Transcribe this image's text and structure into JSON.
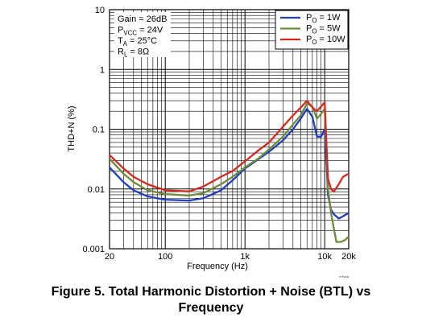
{
  "chart_data": {
    "type": "line",
    "xlabel": "Frequency (Hz)",
    "ylabel": "THD+N (%)",
    "x_scale": "log",
    "y_scale": "log",
    "xlim": [
      20,
      20000
    ],
    "ylim": [
      0.001,
      10
    ],
    "grid": true,
    "legend_position": "top-right",
    "x_ticks": [
      {
        "value": 20,
        "label": "20"
      },
      {
        "value": 100,
        "label": "100"
      },
      {
        "value": 1000,
        "label": "1k"
      },
      {
        "value": 10000,
        "label": "10k"
      },
      {
        "value": 20000,
        "label": "20k"
      }
    ],
    "y_ticks": [
      {
        "value": 0.001,
        "label": "0.001"
      },
      {
        "value": 0.01,
        "label": "0.01"
      },
      {
        "value": 0.1,
        "label": "0.1"
      },
      {
        "value": 1,
        "label": "1"
      },
      {
        "value": 10,
        "label": "10"
      }
    ],
    "conditions": [
      "Gain = 26dB",
      "PVCC = 24V",
      "TA = 25°C",
      "RL = 8Ω"
    ],
    "series": [
      {
        "name": "PO = 1W",
        "color": "#1f3fbf",
        "points": [
          [
            20,
            0.023
          ],
          [
            30,
            0.013
          ],
          [
            40,
            0.0095
          ],
          [
            60,
            0.0075
          ],
          [
            100,
            0.0066
          ],
          [
            200,
            0.0064
          ],
          [
            300,
            0.007
          ],
          [
            500,
            0.0095
          ],
          [
            700,
            0.014
          ],
          [
            1000,
            0.022
          ],
          [
            1500,
            0.032
          ],
          [
            2000,
            0.042
          ],
          [
            3000,
            0.065
          ],
          [
            4000,
            0.1
          ],
          [
            5000,
            0.15
          ],
          [
            6000,
            0.22
          ],
          [
            7000,
            0.16
          ],
          [
            8000,
            0.075
          ],
          [
            9000,
            0.075
          ],
          [
            10000,
            0.1
          ],
          [
            10500,
            0.03
          ],
          [
            11000,
            0.008
          ],
          [
            12000,
            0.0045
          ],
          [
            13000,
            0.0038
          ],
          [
            15000,
            0.0032
          ],
          [
            17000,
            0.0035
          ],
          [
            20000,
            0.004
          ]
        ]
      },
      {
        "name": "PO = 5W",
        "color": "#6f8a3c",
        "points": [
          [
            20,
            0.032
          ],
          [
            30,
            0.018
          ],
          [
            40,
            0.013
          ],
          [
            60,
            0.0095
          ],
          [
            100,
            0.0082
          ],
          [
            200,
            0.0078
          ],
          [
            300,
            0.0085
          ],
          [
            500,
            0.012
          ],
          [
            700,
            0.016
          ],
          [
            1000,
            0.023
          ],
          [
            1500,
            0.033
          ],
          [
            2000,
            0.046
          ],
          [
            3000,
            0.075
          ],
          [
            4000,
            0.12
          ],
          [
            5000,
            0.17
          ],
          [
            6000,
            0.27
          ],
          [
            7000,
            0.24
          ],
          [
            8000,
            0.15
          ],
          [
            9000,
            0.18
          ],
          [
            10000,
            0.22
          ],
          [
            10500,
            0.05
          ],
          [
            11000,
            0.01
          ],
          [
            12000,
            0.004
          ],
          [
            13000,
            0.0022
          ],
          [
            14000,
            0.0013
          ],
          [
            16000,
            0.0013
          ],
          [
            18000,
            0.0014
          ],
          [
            20000,
            0.0016
          ]
        ]
      },
      {
        "name": "PO = 10W",
        "color": "#d42a1e",
        "points": [
          [
            20,
            0.037
          ],
          [
            30,
            0.022
          ],
          [
            40,
            0.016
          ],
          [
            60,
            0.012
          ],
          [
            100,
            0.0095
          ],
          [
            200,
            0.0091
          ],
          [
            300,
            0.011
          ],
          [
            500,
            0.016
          ],
          [
            700,
            0.02
          ],
          [
            1000,
            0.029
          ],
          [
            1500,
            0.045
          ],
          [
            2000,
            0.06
          ],
          [
            3000,
            0.11
          ],
          [
            4000,
            0.17
          ],
          [
            5000,
            0.23
          ],
          [
            6000,
            0.3
          ],
          [
            7000,
            0.23
          ],
          [
            8000,
            0.2
          ],
          [
            9000,
            0.24
          ],
          [
            10000,
            0.28
          ],
          [
            10500,
            0.06
          ],
          [
            11000,
            0.015
          ],
          [
            12000,
            0.01
          ],
          [
            13000,
            0.009
          ],
          [
            15000,
            0.012
          ],
          [
            17000,
            0.016
          ],
          [
            20000,
            0.018
          ]
        ]
      }
    ],
    "figure_id": "G008"
  },
  "caption": {
    "line1": "Figure 5. Total Harmonic Distortion + Noise (BTL) vs",
    "line2": "Frequency"
  }
}
